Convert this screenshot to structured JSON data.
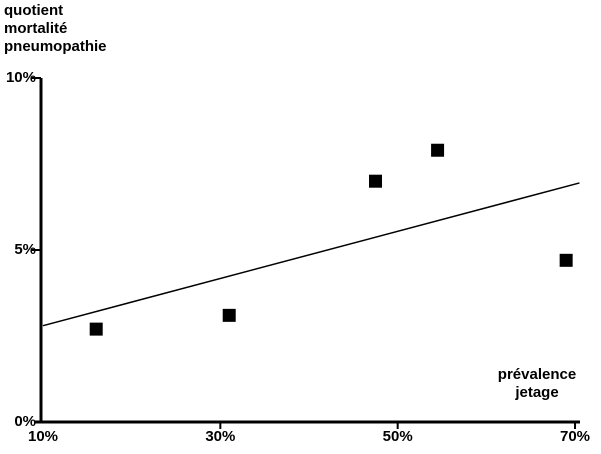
{
  "chart_data": {
    "type": "scatter",
    "title": "",
    "ylabel": "quotient mortalité pneumopathie",
    "ylabel_lines": [
      "quotient",
      "mortalité",
      "pneumopathie"
    ],
    "xlabel": "prévalence jetage",
    "xlabel_lines": [
      "prévalence",
      "jetage"
    ],
    "xlim": [
      10,
      70
    ],
    "ylim": [
      0,
      10
    ],
    "x_ticks": [
      {
        "value": 10,
        "label": "10%"
      },
      {
        "value": 30,
        "label": "30%"
      },
      {
        "value": 50,
        "label": "50%"
      },
      {
        "value": 70,
        "label": "70%"
      }
    ],
    "y_ticks": [
      {
        "value": 0,
        "label": "0%"
      },
      {
        "value": 5,
        "label": "5%"
      },
      {
        "value": 10,
        "label": "10%"
      }
    ],
    "points": [
      {
        "x": 16,
        "y": 2.7
      },
      {
        "x": 31,
        "y": 3.1
      },
      {
        "x": 47.5,
        "y": 7.0
      },
      {
        "x": 54.5,
        "y": 7.9
      },
      {
        "x": 69,
        "y": 4.7
      }
    ],
    "trend_line": {
      "x1": 10,
      "y1": 2.8,
      "x2": 70.5,
      "y2": 6.95
    },
    "marker": "filled-square",
    "grid": false,
    "legend": null,
    "colors": {
      "ink": "#000000",
      "background": "#ffffff"
    }
  }
}
